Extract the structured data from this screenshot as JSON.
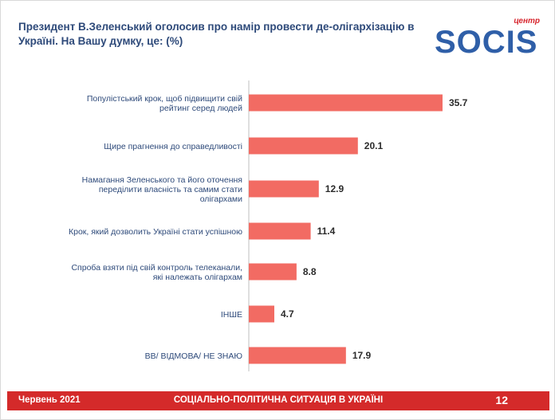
{
  "title": "Президент В.Зеленський оголосив про намір провести де-олігархізацію в Україні. На Вашу думку, це: (%)",
  "logo": {
    "tag": "центр",
    "word": "SOCIS"
  },
  "chart_data": {
    "type": "bar",
    "orientation": "horizontal",
    "categories": [
      "Популістський крок, щоб підвищити свій рейтинг серед людей",
      "Щире прагнення до справедливості",
      "Намагання Зеленського та його оточення переділити власність та самим стати олігархами",
      "Крок, який дозволить Україні стати успішною",
      "Спроба взяти під свій контроль телеканали, які належать олігархам",
      "ІНШЕ",
      "ВВ/ ВІДМОВА/ НЕ ЗНАЮ"
    ],
    "category_lines": [
      [
        "Популістський крок, щоб підвищити свій",
        "рейтинг серед людей"
      ],
      [
        "Щире прагнення до справедливості"
      ],
      [
        "Намагання Зеленського та його оточення",
        "переділити власність та самим стати",
        "олігархами"
      ],
      [
        "Крок, який дозволить Україні стати успішною"
      ],
      [
        "Спроба взяти під свій контроль телеканали,",
        "які належать олігархам"
      ],
      [
        "ІНШЕ"
      ],
      [
        "ВВ/ ВІДМОВА/ НЕ ЗНАЮ"
      ]
    ],
    "values": [
      35.7,
      20.1,
      12.9,
      11.4,
      8.8,
      4.7,
      17.9
    ],
    "value_labels": [
      "35.7",
      "20.1",
      "12.9",
      "11.4",
      "8.8",
      "4.7",
      "17.9"
    ],
    "xlim": [
      0,
      36
    ],
    "grid": false,
    "bar_color": "#f26b63",
    "axis_color": "#bfbfbf"
  },
  "footer": {
    "date": "Червень 2021",
    "center": "СОЦІАЛЬНО-ПОЛІТИЧНА СИТУАЦІЯ В УКРАЇНІ",
    "page": "12",
    "color": "#d42a2a"
  }
}
